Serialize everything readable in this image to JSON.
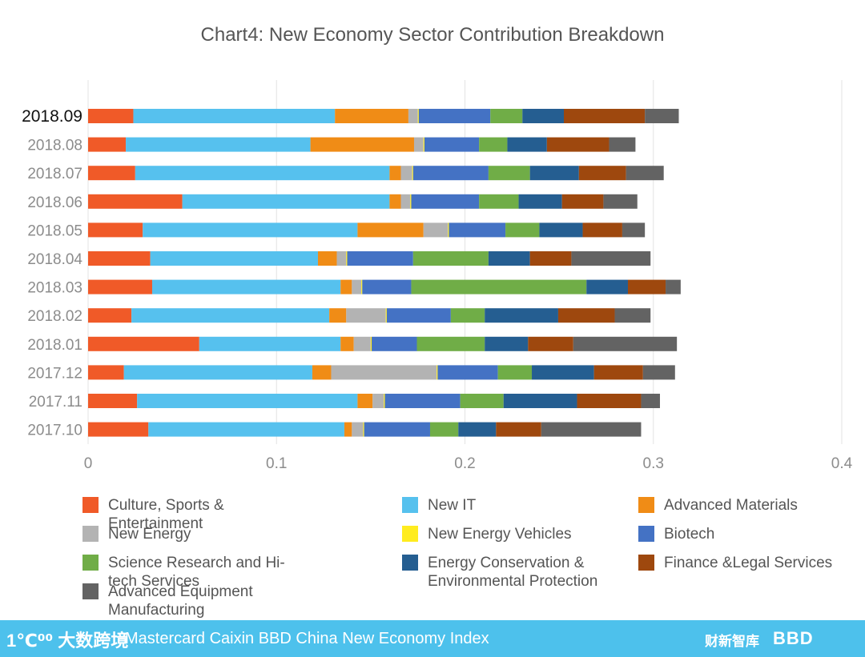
{
  "chart_data": {
    "type": "bar",
    "orientation": "horizontal",
    "stacked": true,
    "title": "Chart4: New Economy Sector Contribution Breakdown",
    "xlim": [
      0,
      0.4
    ],
    "xticks": [
      "0",
      "0.1",
      "0.2",
      "0.3",
      "0.4"
    ],
    "grid": true,
    "legend_position": "bottom",
    "categories": [
      "2018.09",
      "2018.08",
      "2018.07",
      "2018.06",
      "2018.05",
      "2018.04",
      "2018.03",
      "2018.02",
      "2018.01",
      "2017.12",
      "2017.11",
      "2017.10"
    ],
    "highlight_category": "2018.09",
    "series": [
      {
        "name": "Culture, Sports & Entertainment",
        "color": "#f05a28",
        "values": [
          0.024,
          0.02,
          0.025,
          0.05,
          0.029,
          0.033,
          0.034,
          0.023,
          0.059,
          0.019,
          0.026,
          0.032
        ]
      },
      {
        "name": "New IT",
        "color": "#56c1ee",
        "values": [
          0.107,
          0.098,
          0.135,
          0.11,
          0.114,
          0.089,
          0.1,
          0.105,
          0.075,
          0.1,
          0.117,
          0.104
        ]
      },
      {
        "name": "Advanced Materials",
        "color": "#f08c16",
        "values": [
          0.039,
          0.055,
          0.006,
          0.006,
          0.035,
          0.01,
          0.006,
          0.009,
          0.007,
          0.01,
          0.008,
          0.004
        ]
      },
      {
        "name": "New Energy",
        "color": "#b3b3b3",
        "values": [
          0.005,
          0.005,
          0.006,
          0.005,
          0.013,
          0.005,
          0.005,
          0.021,
          0.009,
          0.056,
          0.006,
          0.006
        ]
      },
      {
        "name": "New Energy Vehicles",
        "color": "#ffec1f",
        "values": [
          0.0005,
          0.0005,
          0.0005,
          0.0005,
          0.0005,
          0.0005,
          0.0005,
          0.0005,
          0.0005,
          0.0005,
          0.0005,
          0.0005
        ]
      },
      {
        "name": "Biotech",
        "color": "#4472c4",
        "values": [
          0.038,
          0.029,
          0.04,
          0.036,
          0.03,
          0.035,
          0.026,
          0.034,
          0.024,
          0.032,
          0.04,
          0.035
        ]
      },
      {
        "name": "Science Research and Hi-tech Services",
        "color": "#70ad47",
        "values": [
          0.017,
          0.015,
          0.022,
          0.021,
          0.018,
          0.04,
          0.093,
          0.018,
          0.036,
          0.018,
          0.023,
          0.015
        ]
      },
      {
        "name": "Energy Conservation & Environmental Protection",
        "color": "#255e91",
        "values": [
          0.022,
          0.021,
          0.026,
          0.023,
          0.023,
          0.022,
          0.022,
          0.039,
          0.023,
          0.033,
          0.039,
          0.02
        ]
      },
      {
        "name": "Finance &Legal Services",
        "color": "#9e480e",
        "values": [
          0.043,
          0.033,
          0.025,
          0.022,
          0.021,
          0.022,
          0.02,
          0.03,
          0.024,
          0.026,
          0.034,
          0.024
        ]
      },
      {
        "name": "Advanced Equipment Manufacturing",
        "color": "#636363",
        "values": [
          0.018,
          0.014,
          0.02,
          0.018,
          0.012,
          0.042,
          0.008,
          0.019,
          0.055,
          0.017,
          0.01,
          0.053
        ]
      }
    ]
  },
  "footer": {
    "logo_left": "1℃⁰⁰ 大数跨境",
    "title": "Mastercard Caixin BBD China New Economy Index",
    "logo_caixin": "财新智库",
    "logo_bbd": "BBD",
    "background": "#4dc1ec"
  }
}
